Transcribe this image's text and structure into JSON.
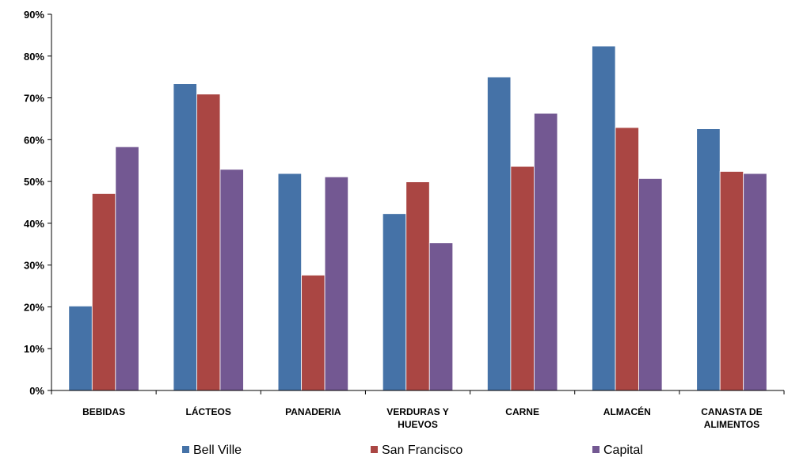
{
  "chart_data": {
    "type": "bar",
    "categories": [
      "BEBIDAS",
      "LÁCTEOS",
      "PANADERIA",
      "VERDURAS Y HUEVOS",
      "CARNE",
      "ALMACÉN",
      "CANASTA DE ALIMENTOS"
    ],
    "category_lines": [
      [
        "BEBIDAS"
      ],
      [
        "LÁCTEOS"
      ],
      [
        "PANADERIA"
      ],
      [
        "VERDURAS Y",
        "HUEVOS"
      ],
      [
        "CARNE"
      ],
      [
        "ALMACÉN"
      ],
      [
        "CANASTA DE",
        "ALIMENTOS"
      ]
    ],
    "series": [
      {
        "name": "Bell Ville",
        "color": "#4572A7",
        "values": [
          20.2,
          73.4,
          51.9,
          42.3,
          75.0,
          82.4,
          62.6
        ]
      },
      {
        "name": "San Francisco",
        "color": "#AA4643",
        "values": [
          47.1,
          70.9,
          27.6,
          49.9,
          53.6,
          62.9,
          52.4
        ]
      },
      {
        "name": "Capital",
        "color": "#735892",
        "values": [
          58.3,
          52.9,
          51.1,
          35.3,
          66.3,
          50.7,
          51.9
        ]
      }
    ],
    "ylim": [
      0,
      90
    ],
    "yticks": [
      0,
      10,
      20,
      30,
      40,
      50,
      60,
      70,
      80,
      90
    ],
    "ytick_labels": [
      "0%",
      "10%",
      "20%",
      "30%",
      "40%",
      "50%",
      "60%",
      "70%",
      "80%",
      "90%"
    ],
    "title": "",
    "xlabel": "",
    "ylabel": "",
    "grid": false,
    "legend_position": "bottom"
  }
}
